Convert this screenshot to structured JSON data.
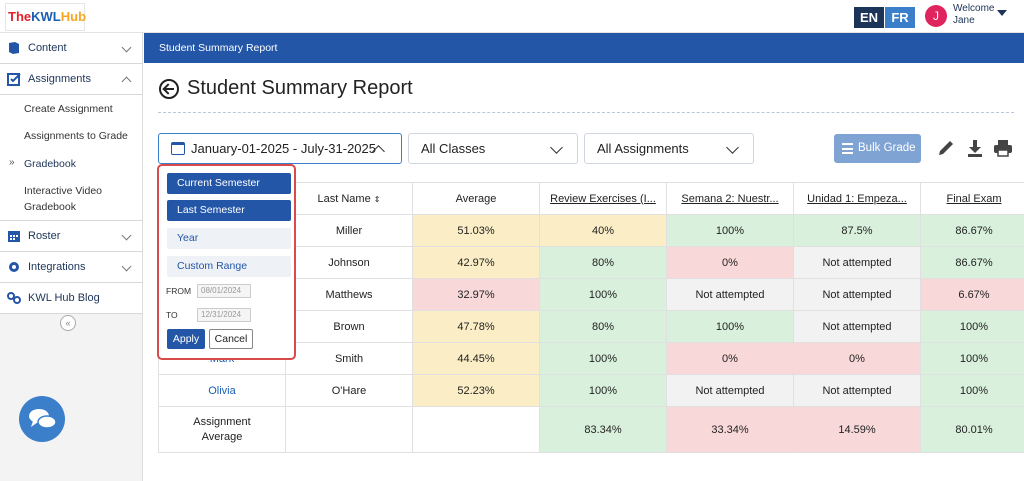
{
  "app": {
    "logo_text_1": "The",
    "logo_text_2": "KWL",
    "logo_text_3": "Hub"
  },
  "header": {
    "lang_en": "EN",
    "lang_fr": "FR",
    "avatar_initial": "J",
    "welcome": "Welcome",
    "user": "Jane"
  },
  "sidebar": {
    "content": "Content",
    "assignments": "Assignments",
    "sub_items": [
      "Create Assignment",
      "Assignments to Grade",
      "Gradebook",
      "Interactive Video",
      "Gradebook"
    ],
    "roster": "Roster",
    "integrations": "Integrations",
    "blog": "KWL Hub Blog",
    "collapse": "«"
  },
  "banner": "Student Summary Report",
  "page_title": "Student Summary Report",
  "filters": {
    "date_range": "January-01-2025 - July-31-2025",
    "classes": "All Classes",
    "assignments": "All Assignments"
  },
  "toolbar": {
    "bulk_grade": "Bulk Grade"
  },
  "date_popup": {
    "options": [
      "Current Semester",
      "Last Semester",
      "Year",
      "Custom Range"
    ],
    "from_label": "FROM",
    "from_value": "08/01/2024",
    "to_label": "TO",
    "to_value": "12/31/2024",
    "apply": "Apply",
    "cancel": "Cancel"
  },
  "table": {
    "headers": [
      "Last Name",
      "Average",
      "Review Exercises (I...",
      "Semana 2: Nuestr...",
      "Unidad 1: Empeza...",
      "Final Exam"
    ],
    "rows": [
      {
        "first": "",
        "last": "Miller",
        "avg": "51.03%",
        "c1": "40%",
        "c2": "100%",
        "c3": "87.5%",
        "c4": "86.67%"
      },
      {
        "first": "",
        "last": "Johnson",
        "avg": "42.97%",
        "c1": "80%",
        "c2": "0%",
        "c3": "Not attempted",
        "c4": "86.67%"
      },
      {
        "first": "",
        "last": "Matthews",
        "avg": "32.97%",
        "c1": "100%",
        "c2": "Not attempted",
        "c3": "Not attempted",
        "c4": "6.67%"
      },
      {
        "first": "",
        "last": "Brown",
        "avg": "47.78%",
        "c1": "80%",
        "c2": "100%",
        "c3": "Not attempted",
        "c4": "100%"
      },
      {
        "first": "Mark",
        "last": "Smith",
        "avg": "44.45%",
        "c1": "100%",
        "c2": "0%",
        "c3": "0%",
        "c4": "100%"
      },
      {
        "first": "Olivia",
        "last": "O'Hare",
        "avg": "52.23%",
        "c1": "100%",
        "c2": "Not attempted",
        "c3": "Not attempted",
        "c4": "100%"
      }
    ],
    "footer": {
      "label_1": "Assignment",
      "label_2": "Average",
      "c1": "83.34%",
      "c2": "33.34%",
      "c3": "14.59%",
      "c4": "80.01%"
    }
  },
  "colors": {
    "primary": "#2456a8",
    "navy": "#1c3458",
    "highlight": "#d94a4a"
  }
}
